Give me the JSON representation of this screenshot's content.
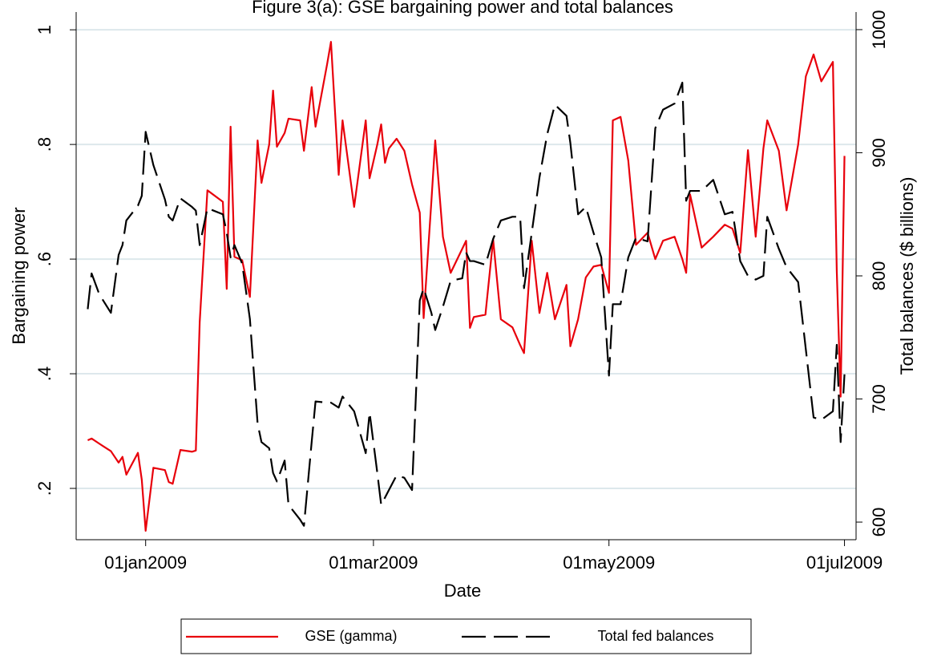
{
  "chart_data": {
    "type": "line",
    "title": "Figure 3(a): GSE bargaining power and total balances",
    "x_label": "Date",
    "y_label": "Bargaining power",
    "y2_label": "Total balances ($ billions)",
    "x": [
      "2008-12-17",
      "2008-12-18",
      "2008-12-20",
      "2008-12-23",
      "2008-12-25",
      "2008-12-26",
      "2008-12-27",
      "2008-12-30",
      "2008-12-31",
      "2009-01-01",
      "2009-01-03",
      "2009-01-06",
      "2009-01-07",
      "2009-01-08",
      "2009-01-10",
      "2009-01-13",
      "2009-01-14",
      "2009-01-15",
      "2009-01-17",
      "2009-01-21",
      "2009-01-22",
      "2009-01-23",
      "2009-01-24",
      "2009-01-26",
      "2009-01-28",
      "2009-01-30",
      "2009-01-31",
      "2009-02-02",
      "2009-02-03",
      "2009-02-04",
      "2009-02-06",
      "2009-02-07",
      "2009-02-10",
      "2009-02-11",
      "2009-02-13",
      "2009-02-14",
      "2009-02-17",
      "2009-02-18",
      "2009-02-20",
      "2009-02-21",
      "2009-02-24",
      "2009-02-27",
      "2009-02-28",
      "2009-03-02",
      "2009-03-03",
      "2009-03-04",
      "2009-03-05",
      "2009-03-07",
      "2009-03-09",
      "2009-03-11",
      "2009-03-13",
      "2009-03-14",
      "2009-03-16",
      "2009-03-17",
      "2009-03-19",
      "2009-03-21",
      "2009-03-24",
      "2009-03-25",
      "2009-03-26",
      "2009-03-27",
      "2009-03-30",
      "2009-04-01",
      "2009-04-03",
      "2009-04-06",
      "2009-04-08",
      "2009-04-09",
      "2009-04-11",
      "2009-04-13",
      "2009-04-15",
      "2009-04-17",
      "2009-04-20",
      "2009-04-21",
      "2009-04-23",
      "2009-04-25",
      "2009-04-27",
      "2009-04-29",
      "2009-05-01",
      "2009-05-02",
      "2009-05-04",
      "2009-05-06",
      "2009-05-08",
      "2009-05-11",
      "2009-05-13",
      "2009-05-15",
      "2009-05-18",
      "2009-05-20",
      "2009-05-21",
      "2009-05-22",
      "2009-05-25",
      "2009-05-28",
      "2009-05-31",
      "2009-06-02",
      "2009-06-04",
      "2009-06-06",
      "2009-06-08",
      "2009-06-10",
      "2009-06-11",
      "2009-06-14",
      "2009-06-16",
      "2009-06-19",
      "2009-06-21",
      "2009-06-23",
      "2009-06-25",
      "2009-06-28",
      "2009-06-29",
      "2009-06-30",
      "2009-07-01"
    ],
    "series": [
      {
        "name": "GSE (gamma)",
        "color": "#e8000b",
        "line_style": "solid",
        "values": [
          0.284,
          0.287,
          0.278,
          0.265,
          0.245,
          0.255,
          0.224,
          0.262,
          0.215,
          0.126,
          0.236,
          0.232,
          0.211,
          0.208,
          0.267,
          0.264,
          0.266,
          0.49,
          0.72,
          0.7,
          0.548,
          0.831,
          0.604,
          0.598,
          0.534,
          0.807,
          0.733,
          0.8,
          0.894,
          0.796,
          0.82,
          0.845,
          0.842,
          0.789,
          0.9,
          0.831,
          0.94,
          0.979,
          0.747,
          0.842,
          0.691,
          0.842,
          0.741,
          0.8,
          0.835,
          0.768,
          0.793,
          0.81,
          0.789,
          0.73,
          0.681,
          0.497,
          0.7,
          0.807,
          0.639,
          0.576,
          0.618,
          0.632,
          0.48,
          0.499,
          0.503,
          0.634,
          0.495,
          0.481,
          0.45,
          0.436,
          0.632,
          0.506,
          0.576,
          0.495,
          0.555,
          0.448,
          0.495,
          0.568,
          0.587,
          0.59,
          0.541,
          0.842,
          0.848,
          0.772,
          0.625,
          0.646,
          0.6,
          0.632,
          0.639,
          0.6,
          0.576,
          0.713,
          0.62,
          0.639,
          0.66,
          0.653,
          0.611,
          0.79,
          0.639,
          0.793,
          0.842,
          0.789,
          0.685,
          0.8,
          0.919,
          0.957,
          0.91,
          0.944,
          0.58,
          0.36,
          0.78
        ]
      },
      {
        "name": "Total fed balances",
        "color": "#000000",
        "line_style": "dashed",
        "axis": "y2",
        "values": [
          773,
          802,
          785,
          770,
          817,
          825,
          845,
          857,
          865,
          917,
          890,
          862,
          848,
          845,
          863,
          856,
          853,
          825,
          855,
          850,
          835,
          815,
          825,
          810,
          765,
          680,
          665,
          660,
          640,
          633,
          650,
          614,
          602,
          597,
          665,
          698,
          697,
          697,
          693,
          702,
          690,
          656,
          689,
          640,
          614,
          620,
          626,
          638,
          636,
          626,
          780,
          790,
          770,
          756,
          775,
          796,
          798,
          819,
          812,
          812,
          809,
          830,
          845,
          848,
          848,
          790,
          835,
          880,
          915,
          939,
          930,
          908,
          850,
          856,
          835,
          815,
          719,
          777,
          777,
          815,
          831,
          828,
          920,
          935,
          940,
          957,
          861,
          869,
          869,
          878,
          850,
          852,
          812,
          800,
          797,
          800,
          848,
          822,
          807,
          795,
          740,
          685,
          683,
          690,
          744,
          665,
          720
        ]
      }
    ],
    "xlim": [
      "2008-12-14",
      "2009-07-04"
    ],
    "xticks": [
      {
        "value": "2009-01-01",
        "label": "01jan2009"
      },
      {
        "value": "2009-03-01",
        "label": "01mar2009"
      },
      {
        "value": "2009-05-01",
        "label": "01may2009"
      },
      {
        "value": "2009-07-01",
        "label": "01jul2009"
      }
    ],
    "ylim": [
      0.1105,
      1.031
    ],
    "yticks": [
      {
        "value": 0.2,
        "label": ".2"
      },
      {
        "value": 0.4,
        "label": ".4"
      },
      {
        "value": 0.6,
        "label": ".6"
      },
      {
        "value": 0.8,
        "label": ".8"
      },
      1
    ],
    "y2lim": [
      585.7,
      1014.3
    ],
    "y2ticks": [
      600,
      700,
      800,
      900,
      1000
    ],
    "grid": true,
    "legend": "bottom"
  }
}
